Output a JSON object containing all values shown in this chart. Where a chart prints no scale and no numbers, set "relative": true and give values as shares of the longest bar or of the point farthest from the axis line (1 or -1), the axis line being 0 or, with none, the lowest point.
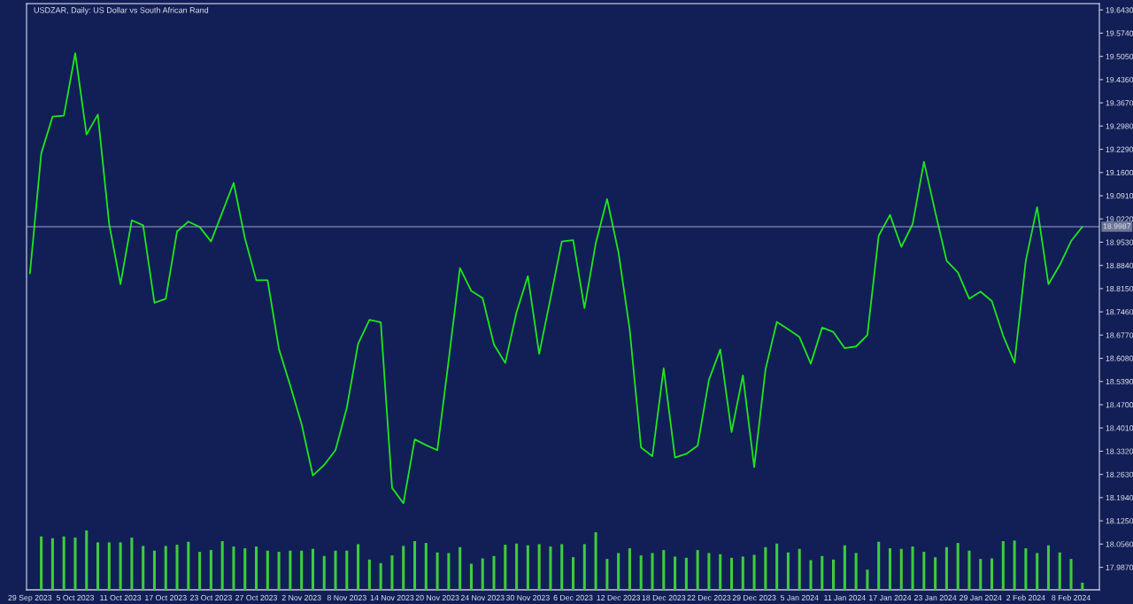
{
  "chart_data": [
    {
      "type": "line",
      "title": "USDZAR, Daily: US Dollar vs South African Rand",
      "categories": [
        "29 Sep 2023",
        null,
        null,
        null,
        "5 Oct 2023",
        null,
        null,
        null,
        "11 Oct 2023",
        null,
        null,
        null,
        "17 Oct 2023",
        null,
        null,
        null,
        "23 Oct 2023",
        null,
        null,
        null,
        "27 Oct 2023",
        null,
        null,
        null,
        "2 Nov 2023",
        null,
        null,
        null,
        "8 Nov 2023",
        null,
        null,
        null,
        "14 Nov 2023",
        null,
        null,
        null,
        "20 Nov 2023",
        null,
        null,
        null,
        "24 Nov 2023",
        null,
        null,
        null,
        "30 Nov 2023",
        null,
        null,
        null,
        "6 Dec 2023",
        null,
        null,
        null,
        "12 Dec 2023",
        null,
        null,
        null,
        "18 Dec 2023",
        null,
        null,
        null,
        "22 Dec 2023",
        null,
        null,
        null,
        "29 Dec 2023",
        null,
        null,
        null,
        "5 Jan 2024",
        null,
        null,
        null,
        "11 Jan 2024",
        null,
        null,
        null,
        "17 Jan 2024",
        null,
        null,
        null,
        "23 Jan 2024",
        null,
        null,
        null,
        "29 Jan 2024",
        null,
        null,
        null,
        "2 Feb 2024",
        null,
        null,
        null,
        "8 Feb 2024",
        null
      ],
      "series": [
        {
          "color": "#1ee61e",
          "values": [
            18.86,
            19.217,
            19.326,
            19.329,
            19.514,
            19.273,
            19.332,
            19.007,
            18.828,
            19.018,
            19.003,
            18.773,
            18.785,
            18.985,
            19.014,
            18.998,
            18.955,
            19.042,
            19.129,
            18.964,
            18.84,
            18.84,
            18.636,
            18.527,
            18.413,
            18.26,
            18.291,
            18.335,
            18.461,
            18.651,
            18.722,
            18.715,
            18.223,
            18.177,
            18.367,
            18.35,
            18.335,
            18.602,
            18.876,
            18.808,
            18.787,
            18.649,
            18.594,
            18.745,
            18.852,
            18.621,
            18.786,
            18.955,
            18.959,
            18.757,
            18.95,
            19.081,
            18.924,
            18.693,
            18.343,
            18.317,
            18.578,
            18.313,
            18.324,
            18.348,
            18.544,
            18.634,
            18.389,
            18.557,
            18.285,
            18.575,
            18.716,
            18.694,
            18.671,
            18.592,
            18.699,
            18.686,
            18.638,
            18.643,
            18.677,
            18.972,
            19.034,
            18.939,
            19.007,
            19.192,
            19.042,
            18.898,
            18.863,
            18.785,
            18.806,
            18.778,
            18.675,
            18.595,
            18.898,
            19.057,
            18.828,
            18.885,
            18.956,
            18.999
          ]
        }
      ],
      "ylim": [
        17.92,
        19.662
      ],
      "yticks": [
        {
          "value": 19.643,
          "label": "19.6430"
        },
        {
          "value": 19.574,
          "label": "19.5740"
        },
        {
          "value": 19.505,
          "label": "19.5050"
        },
        {
          "value": 19.436,
          "label": "19.4360"
        },
        {
          "value": 19.367,
          "label": "19.3670"
        },
        {
          "value": 19.298,
          "label": "19.2980"
        },
        {
          "value": 19.229,
          "label": "19.2290"
        },
        {
          "value": 19.16,
          "label": "19.1600"
        },
        {
          "value": 19.091,
          "label": "19.0910"
        },
        {
          "value": 19.022,
          "label": "19.0220"
        },
        {
          "value": 18.953,
          "label": "18.9530"
        },
        {
          "value": 18.884,
          "label": "18.8840"
        },
        {
          "value": 18.815,
          "label": "18.8150"
        },
        {
          "value": 18.746,
          "label": "18.7460"
        },
        {
          "value": 18.677,
          "label": "18.6770"
        },
        {
          "value": 18.608,
          "label": "18.6080"
        },
        {
          "value": 18.539,
          "label": "18.5390"
        },
        {
          "value": 18.47,
          "label": "18.4700"
        },
        {
          "value": 18.401,
          "label": "18.4010"
        },
        {
          "value": 18.332,
          "label": "18.3320"
        },
        {
          "value": 18.263,
          "label": "18.2630"
        },
        {
          "value": 18.194,
          "label": "18.1940"
        },
        {
          "value": 18.125,
          "label": "18.1250"
        },
        {
          "value": 18.056,
          "label": "18.0560"
        },
        {
          "value": 17.987,
          "label": "17.9870"
        }
      ],
      "ref_lines": [
        {
          "axis": "y",
          "value": 18.9987,
          "label": "18.9987",
          "color": "#9aa3c4"
        }
      ]
    },
    {
      "type": "bar",
      "relative": true,
      "color": "#3ccd3c",
      "categories": [
        null,
        null,
        null,
        null,
        null,
        null,
        null,
        null,
        null,
        null,
        null,
        null,
        null,
        null,
        null,
        null,
        null,
        null,
        null,
        null,
        null,
        null,
        null,
        null,
        null,
        null,
        null,
        null,
        null,
        null,
        null,
        null,
        null,
        null,
        null,
        null,
        null,
        null,
        null,
        null,
        null,
        null,
        null,
        null,
        null,
        null,
        null,
        null,
        null,
        null,
        null,
        null,
        null,
        null,
        null,
        null,
        null,
        null,
        null,
        null,
        null,
        null,
        null,
        null,
        null,
        null,
        null,
        null,
        null,
        null,
        null,
        null,
        null,
        null,
        null,
        null,
        null,
        null,
        null,
        null,
        null,
        null,
        null,
        null,
        null,
        null,
        null,
        null,
        null,
        null,
        null,
        null,
        null,
        null
      ],
      "values": [
        null,
        0.9,
        0.87,
        0.9,
        0.88,
        1.0,
        0.8,
        0.8,
        0.8,
        0.88,
        0.74,
        0.66,
        0.74,
        0.76,
        0.81,
        0.64,
        0.67,
        0.82,
        0.73,
        0.7,
        0.73,
        0.66,
        0.64,
        0.66,
        0.66,
        0.69,
        0.57,
        0.66,
        0.66,
        0.77,
        0.51,
        0.45,
        0.58,
        0.74,
        0.82,
        0.79,
        0.63,
        0.62,
        0.72,
        0.44,
        0.53,
        0.57,
        0.76,
        0.78,
        0.75,
        0.77,
        0.73,
        0.77,
        0.55,
        0.77,
        0.97,
        0.52,
        0.62,
        0.7,
        0.58,
        0.62,
        0.67,
        0.56,
        0.54,
        0.67,
        0.62,
        0.6,
        0.54,
        0.56,
        0.59,
        0.72,
        0.78,
        0.63,
        0.69,
        0.5,
        0.57,
        0.51,
        0.75,
        0.62,
        0.34,
        0.81,
        0.7,
        0.69,
        0.73,
        0.64,
        0.55,
        0.72,
        0.79,
        0.66,
        0.52,
        0.53,
        0.82,
        0.83,
        0.7,
        0.62,
        0.75,
        0.63,
        0.52,
        0.12
      ]
    }
  ]
}
